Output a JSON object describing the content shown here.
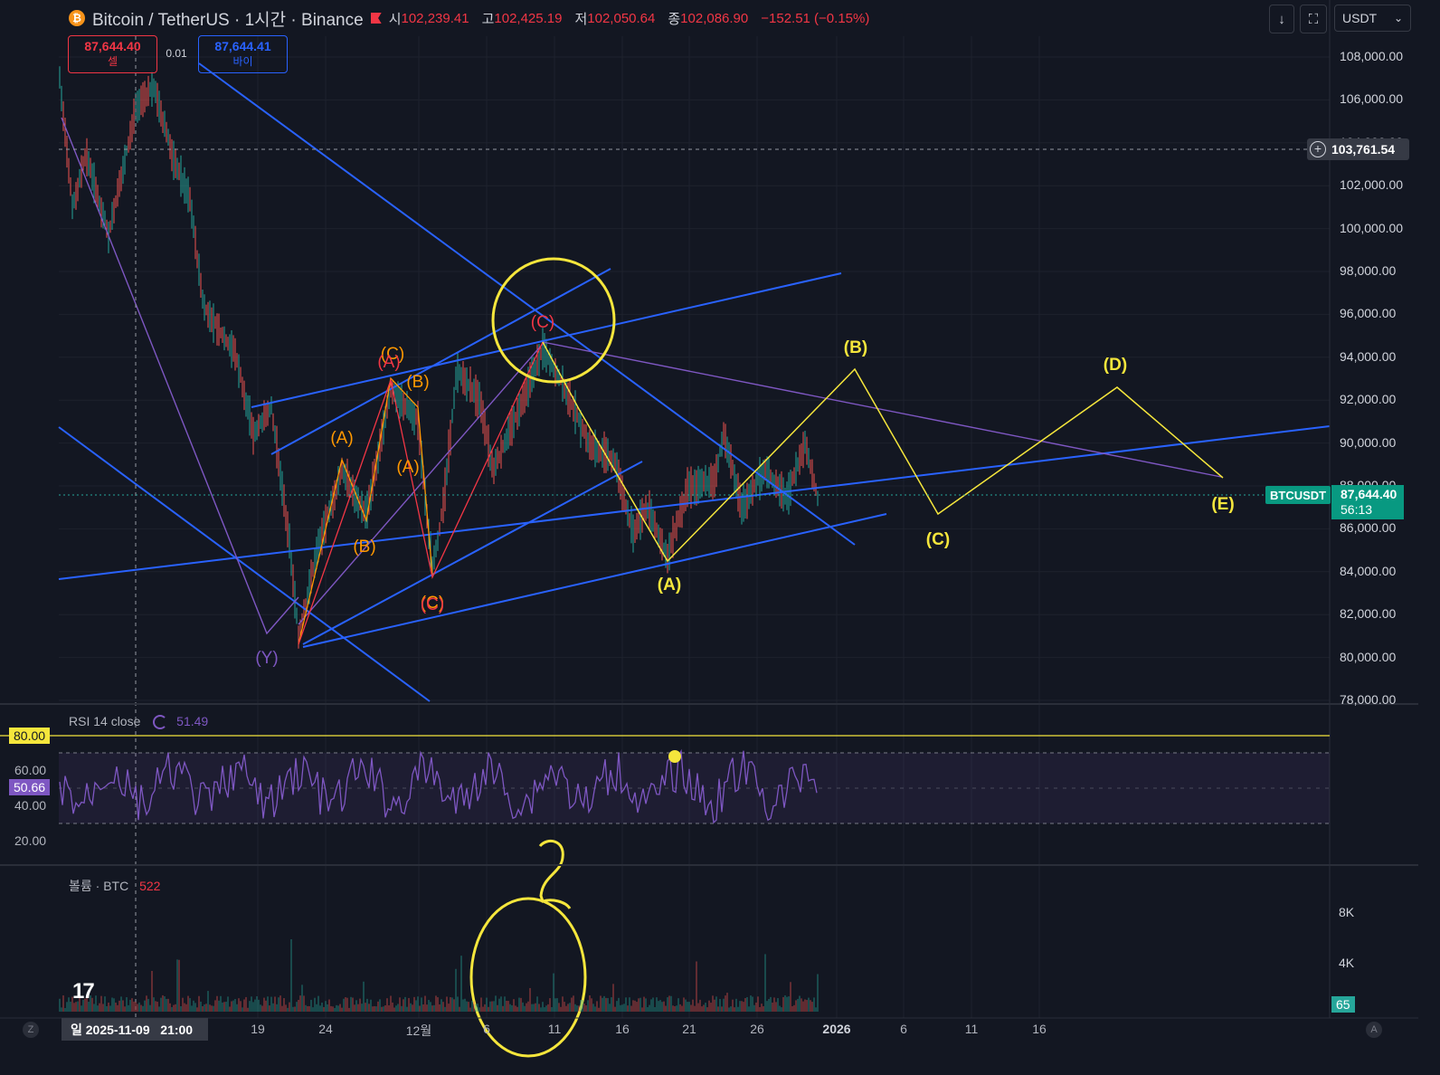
{
  "header": {
    "title": "Bitcoin / TetherUS · 1시간 · Binance",
    "coin_glyph": "₿",
    "ohlc": [
      {
        "k": "시",
        "v": "102,239.41"
      },
      {
        "k": "고",
        "v": "102,425.19"
      },
      {
        "k": "저",
        "v": "102,050.64"
      },
      {
        "k": "종",
        "v": "102,086.90"
      }
    ],
    "change": "−152.51 (−0.15%)"
  },
  "trade": {
    "sell_price": "87,644.40",
    "sell_label": "셀",
    "spread": "0.01",
    "buy_price": "87,644.41",
    "buy_label": "바이"
  },
  "toolbar": {
    "currency": "USDT",
    "download_icon": "↓",
    "fullscreen_icon": "⛶",
    "chevron": "⌄"
  },
  "price_axis": {
    "ticks": [
      "108,000.00",
      "106,000.00",
      "104,000.00",
      "102,000.00",
      "100,000.00",
      "98,000.00",
      "96,000.00",
      "94,000.00",
      "92,000.00",
      "90,000.00",
      "88,000.00",
      "86,000.00",
      "84,000.00",
      "82,000.00",
      "80,000.00",
      "78,000.00"
    ],
    "crosshair_price": "103,761.54",
    "symbol_tag": "BTCUSDT",
    "last_price": "87,644.40",
    "countdown": "56:13"
  },
  "rsi": {
    "legend": "RSI 14 close",
    "value": "51.49",
    "ticks": [
      "80.00",
      "60.00",
      "40.00",
      "20.00"
    ],
    "current": "50.66"
  },
  "volume": {
    "legend": "볼륨 · BTC",
    "value": "522",
    "ticks": [
      "8K",
      "4K"
    ],
    "current": "65"
  },
  "time_axis": {
    "ticks": [
      "19",
      "24",
      "12월",
      "6",
      "11",
      "16",
      "21",
      "26",
      "2026",
      "6",
      "11",
      "16"
    ],
    "crosshair_label": "일 2025-11-09   21:00",
    "left_btn": "Z",
    "right_btn": "A"
  },
  "wave_labels": {
    "orange": [
      "(A)",
      "(B)",
      "(C)",
      "(A)",
      "(B)",
      "(C)"
    ],
    "red": [
      "(A)",
      "(C)",
      "(C)"
    ],
    "yellow": [
      "(A)",
      "(B)",
      "(C)",
      "(D)",
      "(E)"
    ],
    "purple": [
      "(Y)"
    ]
  },
  "annotation": {
    "question_mark": "?"
  },
  "colors": {
    "bg": "#131722",
    "up": "#26a69a",
    "down": "#ef5350",
    "trendline": "#2962ff",
    "yellow": "#f5e63c",
    "purple": "#7e57c2",
    "orange": "#ff9800",
    "red": "#f23645",
    "rsi_line": "#7e57c2"
  },
  "logo_text": "17"
}
